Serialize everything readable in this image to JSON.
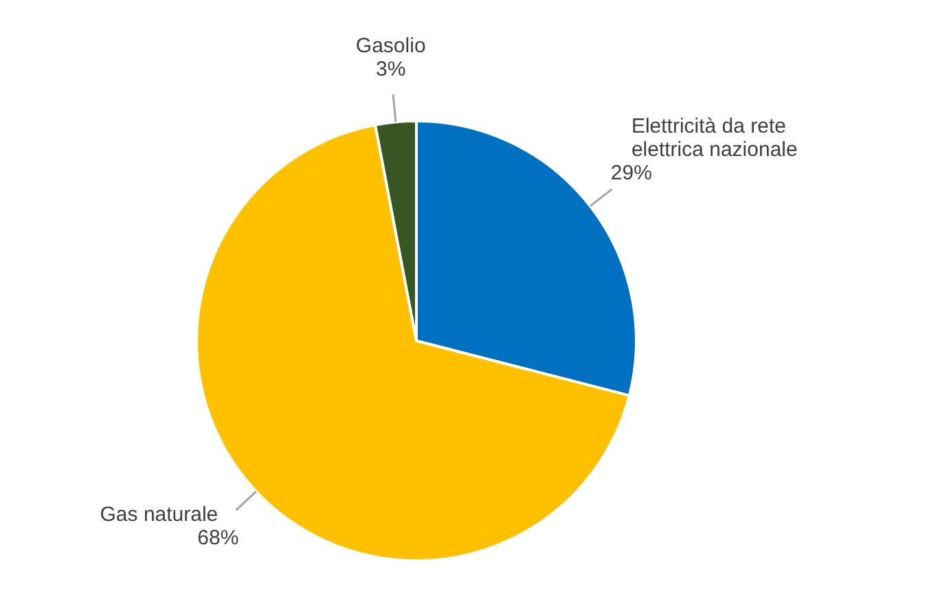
{
  "chart_data": {
    "type": "pie",
    "categories": [
      "Elettricità da rete elettrica nazionale",
      "Gas naturale",
      "Gasolio"
    ],
    "values": [
      29,
      68,
      3
    ],
    "colors": [
      "#0070c0",
      "#ffc000",
      "#375623"
    ],
    "value_labels": [
      "29%",
      "68%",
      "3%"
    ]
  }
}
